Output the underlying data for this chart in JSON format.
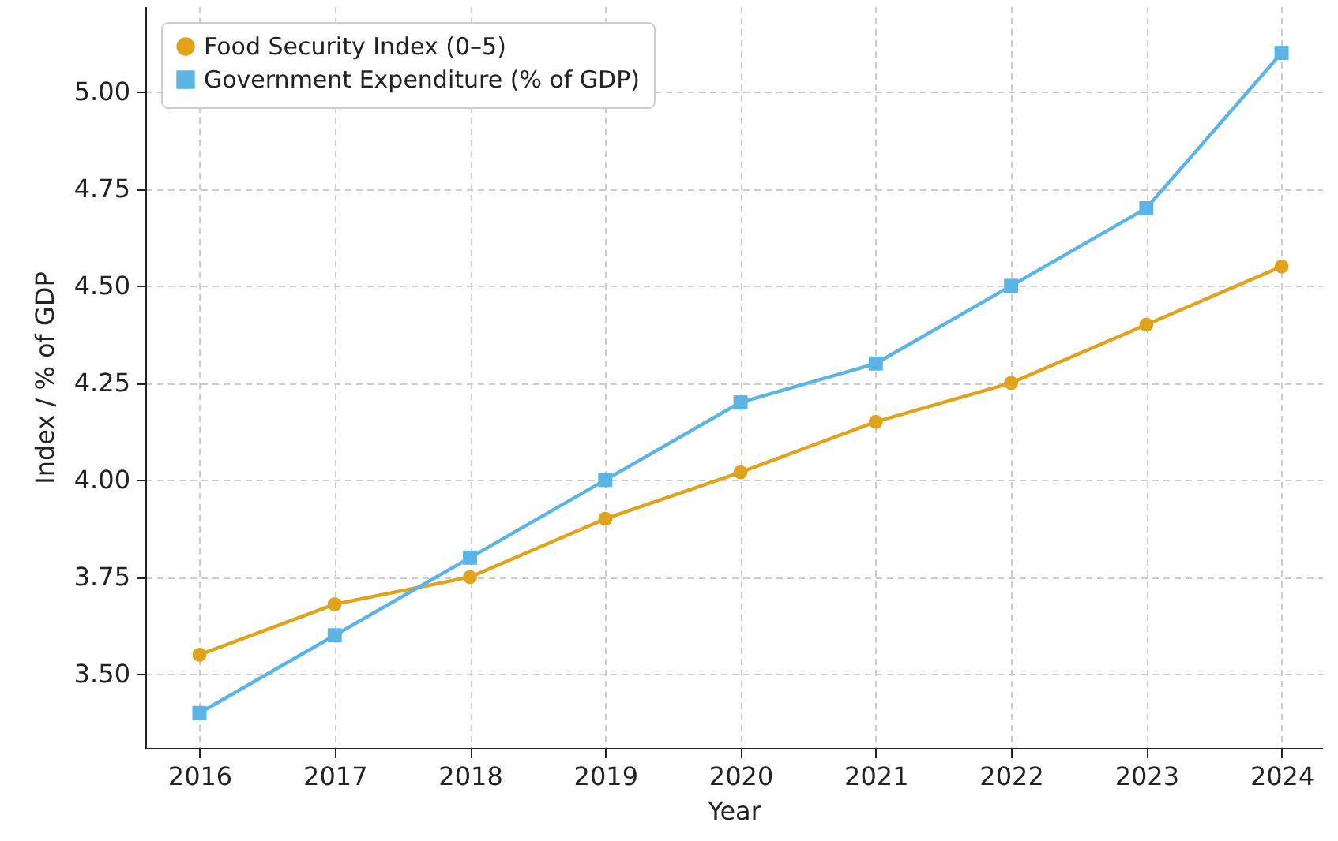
{
  "chart_data": {
    "type": "line",
    "xlabel": "Year",
    "ylabel": "Index / % of GDP",
    "x": [
      2016,
      2017,
      2018,
      2019,
      2020,
      2021,
      2022,
      2023,
      2024
    ],
    "series": [
      {
        "name": "Food Security Index (0–5)",
        "color": "#e1a21c",
        "marker": "circle",
        "values": [
          3.55,
          3.68,
          3.75,
          3.9,
          4.02,
          4.15,
          4.25,
          4.4,
          4.55
        ]
      },
      {
        "name": "Government Expenditure (% of GDP)",
        "color": "#5ab4e5",
        "marker": "square",
        "values": [
          3.4,
          3.6,
          3.8,
          4.0,
          4.2,
          4.3,
          4.5,
          4.7,
          5.1
        ]
      }
    ],
    "xlim": [
      2015.6,
      2024.3
    ],
    "xticks": [
      2016,
      2017,
      2018,
      2019,
      2020,
      2021,
      2022,
      2023,
      2024
    ],
    "ylim": [
      3.31,
      5.22
    ],
    "yticks": [
      {
        "value": 3.5,
        "label": "3.50"
      },
      {
        "value": 3.75,
        "label": "3.75"
      },
      {
        "value": 4.0,
        "label": "4.00"
      },
      {
        "value": 4.25,
        "label": "4.25"
      },
      {
        "value": 4.5,
        "label": "4.50"
      },
      {
        "value": 4.75,
        "label": "4.75"
      },
      {
        "value": 5.0,
        "label": "5.00"
      }
    ],
    "grid": true,
    "legend": "top left",
    "line_style": "solid"
  }
}
